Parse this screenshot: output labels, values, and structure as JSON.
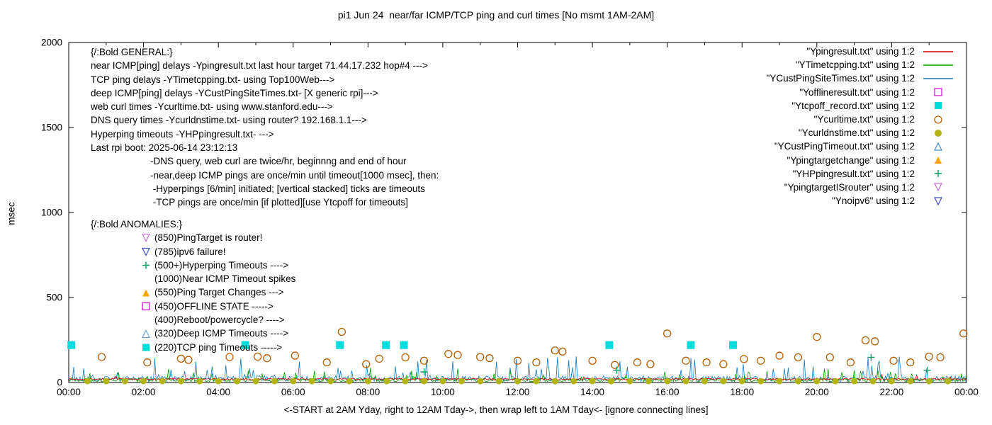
{
  "chart_data": {
    "type": "line+scatter",
    "title": "pi1 Jun 24  near/far ICMP/TCP ping and curl times [No msmt 1AM-2AM]",
    "xlabel": "<-START at 2AM Yday, right to 12AM Tday->, then wrap left to 1AM Tday<- [ignore connecting lines]",
    "ylabel": "msec",
    "ylim": [
      0,
      2000
    ],
    "yticks": [
      0,
      500,
      1000,
      1500,
      2000
    ],
    "xlim_hours": [
      0,
      24
    ],
    "xticks": [
      {
        "h": 0,
        "label": "00:00"
      },
      {
        "h": 2,
        "label": "02:00"
      },
      {
        "h": 4,
        "label": "04:00"
      },
      {
        "h": 6,
        "label": "06:00"
      },
      {
        "h": 8,
        "label": "08:00"
      },
      {
        "h": 10,
        "label": "10:00"
      },
      {
        "h": 12,
        "label": "12:00"
      },
      {
        "h": 14,
        "label": "14:00"
      },
      {
        "h": 16,
        "label": "16:00"
      },
      {
        "h": 18,
        "label": "18:00"
      },
      {
        "h": 20,
        "label": "20:00"
      },
      {
        "h": 22,
        "label": "22:00"
      },
      {
        "h": 24,
        "label": "00:00"
      }
    ],
    "legend": [
      {
        "label": "\"Ypingresult.txt\" using 1:2",
        "marker": "line",
        "color": "#e10000",
        "icon": "red-line-icon"
      },
      {
        "label": "\"YTimetcpping.txt\" using 1:2",
        "marker": "line",
        "color": "#00a000",
        "icon": "green-line-icon"
      },
      {
        "label": "\"YCustPingSiteTimes.txt\" using 1:2",
        "marker": "line",
        "color": "#0f7ac0",
        "icon": "blue-line-icon"
      },
      {
        "label": "\"Yofflineresult.txt\" using 1:2",
        "marker": "square-open",
        "color": "#d400d4",
        "icon": "magenta-open-square-icon"
      },
      {
        "label": "\"Ytcpoff_record.txt\" using 1:2",
        "marker": "square-filled",
        "color": "#00dcdc",
        "icon": "cyan-filled-square-icon"
      },
      {
        "label": "\"Ycurltime.txt\" using 1:2",
        "marker": "circle-open",
        "color": "#b85c00",
        "icon": "orange-open-circle-icon"
      },
      {
        "label": "\"Ycurldnstime.txt\" using 1:2",
        "marker": "circle-filled",
        "color": "#b2b414",
        "icon": "olive-filled-circle-icon"
      },
      {
        "label": "\"YCustPingTimeout.txt\" using 1:2",
        "marker": "triangle-up-open",
        "color": "#4a86c8",
        "icon": "blue-open-triangle-icon"
      },
      {
        "label": "\"Ypingtargetchange\" using 1:2",
        "marker": "triangle-up-filled",
        "color": "#ffa500",
        "icon": "orange-filled-triangle-icon"
      },
      {
        "label": "\"YHPpingresult.txt\" using 1:2",
        "marker": "plus",
        "color": "#009e60",
        "icon": "green-plus-icon"
      },
      {
        "label": "\"YpingtargetISrouter\" using 1:2",
        "marker": "triangle-down-open",
        "color": "#c76fdd",
        "icon": "violet-down-triangle-icon"
      },
      {
        "label": "\"Ynoipv6\" using 1:2",
        "marker": "triangle-down-open",
        "color": "#3c50c8",
        "icon": "blue-down-triangle-icon"
      }
    ],
    "lines": [
      {
        "name": "Ypingresult.txt",
        "color": "#e10000",
        "baseline": 20,
        "noise": 5,
        "spike_prob": 0.01,
        "spike_max": 25,
        "samples": 720,
        "seed": 7
      },
      {
        "name": "YTimetcpping.txt",
        "color": "#00a000",
        "baseline": 14,
        "noise": 10,
        "spike_prob": 0.1,
        "spike_max": 70,
        "samples": 720,
        "seed": 13
      },
      {
        "name": "YCustPingSiteTimes.txt",
        "color": "#0f7ac0",
        "baseline": 22,
        "noise": 16,
        "spike_prob": 0.12,
        "spike_max": 120,
        "samples": 720,
        "seed": 29
      }
    ],
    "scatter": [
      {
        "name": "Ytcpoff_record.txt",
        "marker": "square-filled",
        "color": "#00dcdc",
        "size": 5.5,
        "points": [
          [
            0.07,
            220
          ],
          [
            4.72,
            220
          ],
          [
            7.25,
            220
          ],
          [
            8.48,
            220
          ],
          [
            8.96,
            220
          ],
          [
            14.45,
            220
          ],
          [
            16.63,
            220
          ],
          [
            17.76,
            220
          ]
        ]
      },
      {
        "name": "Ycurltime.txt",
        "marker": "circle-open",
        "color": "#b85c00",
        "size": 5,
        "points": [
          [
            0.88,
            150
          ],
          [
            2.1,
            118
          ],
          [
            3.0,
            140
          ],
          [
            3.2,
            133
          ],
          [
            4.3,
            150
          ],
          [
            5.05,
            152
          ],
          [
            5.3,
            143
          ],
          [
            6.05,
            158
          ],
          [
            6.9,
            118
          ],
          [
            7.3,
            298
          ],
          [
            7.95,
            108
          ],
          [
            8.3,
            140
          ],
          [
            9.0,
            148
          ],
          [
            9.5,
            128
          ],
          [
            10.15,
            168
          ],
          [
            10.4,
            162
          ],
          [
            11.0,
            150
          ],
          [
            11.25,
            143
          ],
          [
            12.0,
            128
          ],
          [
            12.5,
            118
          ],
          [
            13.0,
            188
          ],
          [
            13.2,
            182
          ],
          [
            14.0,
            128
          ],
          [
            14.6,
            103
          ],
          [
            15.2,
            118
          ],
          [
            15.55,
            108
          ],
          [
            16.0,
            288
          ],
          [
            16.5,
            128
          ],
          [
            17.05,
            118
          ],
          [
            17.5,
            108
          ],
          [
            18.05,
            138
          ],
          [
            18.5,
            128
          ],
          [
            19.0,
            158
          ],
          [
            19.5,
            148
          ],
          [
            20.0,
            268
          ],
          [
            20.35,
            148
          ],
          [
            20.9,
            118
          ],
          [
            21.3,
            248
          ],
          [
            21.55,
            242
          ],
          [
            22.05,
            128
          ],
          [
            22.5,
            118
          ],
          [
            23.0,
            152
          ],
          [
            23.3,
            148
          ],
          [
            23.92,
            288
          ]
        ]
      },
      {
        "name": "Ycurldnstime.txt",
        "marker": "circle-filled",
        "color": "#b2b414",
        "size": 4.5,
        "period": {
          "start": 0.5,
          "end": 23.9,
          "step": 0.5,
          "value": 8
        }
      },
      {
        "name": "YHPpingresult.txt",
        "marker": "plus",
        "color": "#009e60",
        "size": 5,
        "points": [
          [
            9.5,
            62
          ],
          [
            14.65,
            72
          ],
          [
            21.45,
            148
          ],
          [
            22.95,
            72
          ]
        ]
      }
    ],
    "annotations": {
      "general": [
        {
          "text": "{/:Bold GENERAL:}",
          "indent": 0
        },
        {
          "text": "near ICMP[ping] delays -Ypingresult.txt last hour target 71.44.17.232 hop#4 --->",
          "indent": 0
        },
        {
          "text": "TCP ping delays -YTimetcpping.txt- using Top100Web--->",
          "indent": 0
        },
        {
          "text": "deep ICMP[ping] delays -YCustPingSiteTimes.txt- [X generic rpi]--->",
          "indent": 0
        },
        {
          "text": "web curl times -Ycurltime.txt- using www.stanford.edu--->",
          "indent": 0
        },
        {
          "text": "DNS query times -Ycurldnstime.txt- using router? 192.168.1.1--->",
          "indent": 0
        },
        {
          "text": "Hyperping timeouts -YHPpingresult.txt- --->",
          "indent": 0
        },
        {
          "text": "Last rpi boot: 2025-06-14 23:12:13",
          "indent": 0
        },
        {
          "text": "-DNS query, web curl are twice/hr, beginnng and end of hour",
          "indent": 1
        },
        {
          "text": "-near,deep ICMP pings are once/min until timeout[1000 msec], then:",
          "indent": 1
        },
        {
          "text": " -Hyperpings [6/min] initiated; [vertical stacked] ticks are timeouts",
          "indent": 1
        },
        {
          "text": " -TCP pings are once/min [if plotted][use Ytcpoff for timeouts]",
          "indent": 1
        }
      ],
      "anomalies_header": "{/:Bold ANOMALIES:}",
      "anomalies": [
        {
          "marker": "triangle-down-open",
          "color": "#c76fdd",
          "icon": "violet-down-triangle-icon",
          "text": "(850)PingTarget is router!"
        },
        {
          "marker": "triangle-down-open",
          "color": "#3c50c8",
          "icon": "blue-down-triangle-icon",
          "text": "(785)ipv6 failure!"
        },
        {
          "marker": "plus",
          "color": "#009e60",
          "icon": "green-plus-icon",
          "text": "(500+)Hyperping Timeouts ---->"
        },
        {
          "marker": null,
          "color": null,
          "icon": "no-icon",
          "text": "(1000)Near ICMP Timeout spikes"
        },
        {
          "marker": "triangle-up-filled",
          "color": "#ffa500",
          "icon": "orange-filled-triangle-icon",
          "text": "(550)Ping Target Changes --->"
        },
        {
          "marker": "square-open",
          "color": "#d400d4",
          "icon": "magenta-open-square-icon",
          "text": "(450)OFFLINE STATE ----->"
        },
        {
          "marker": null,
          "color": null,
          "icon": "no-icon",
          "text": "(400)Reboot/powercycle? ---->"
        },
        {
          "marker": "triangle-up-open",
          "color": "#6aa3d8",
          "icon": "blue-open-triangle-icon",
          "text": "(320)Deep ICMP Timeouts ---->"
        },
        {
          "marker": "square-filled",
          "color": "#00dcdc",
          "icon": "cyan-filled-square-icon",
          "text": "(220)TCP ping Timeouts ----->"
        }
      ]
    }
  }
}
